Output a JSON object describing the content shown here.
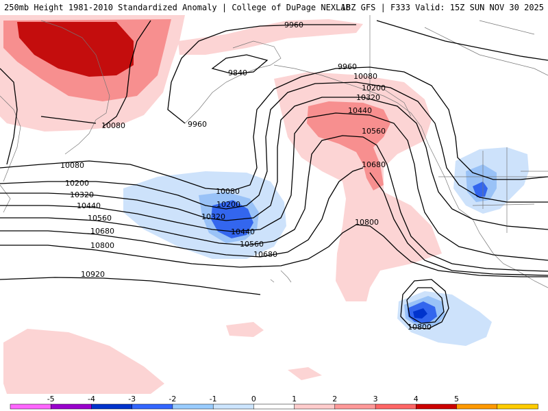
{
  "header": {
    "left": "250mb Height 1981-2010 Standardized Anomaly | College of DuPage NEXLAB",
    "right": "18Z GFS | F333 Valid: 15Z SUN NOV 30 2025"
  },
  "contour_labels": {
    "c9960a": "9960",
    "c9960b": "9960",
    "c9960c": "9960",
    "c9840": "9840",
    "c10080a": "10080",
    "c10080b": "10080",
    "c10080c": "10080",
    "c10080d": "10080",
    "c10200a": "10200",
    "c10200b": "10200",
    "c10200c": "10200",
    "c10320a": "10320",
    "c10320b": "10320",
    "c10320c": "10320",
    "c10440a": "10440",
    "c10440b": "10440",
    "c10440c": "10440",
    "c10560a": "10560",
    "c10560b": "10560",
    "c10560c": "10560",
    "c10680a": "10680",
    "c10680b": "10680",
    "c10680c": "10680",
    "c10800a": "10800",
    "c10800b": "10800",
    "c10800c": "10800",
    "c10920": "10920"
  },
  "colorbar": {
    "ticks": [
      "-5",
      "-4",
      "-3",
      "-2",
      "-1",
      "0",
      "1",
      "2",
      "3",
      "4",
      "5"
    ],
    "colors": [
      "#ff66ff",
      "#9900cc",
      "#0033cc",
      "#3366ff",
      "#99ccff",
      "#cce5ff",
      "#ffffff",
      "#ffcccc",
      "#ff9999",
      "#ff6666",
      "#cc0000",
      "#ff9900",
      "#ffcc00"
    ]
  },
  "colors": {
    "neg1": "#cde2fb",
    "neg2": "#99c2f7",
    "neg3": "#3366ee",
    "pos1": "#fcd4d4",
    "pos2": "#f78f8f",
    "pos3": "#e05555",
    "pos4": "#c40d0d"
  }
}
